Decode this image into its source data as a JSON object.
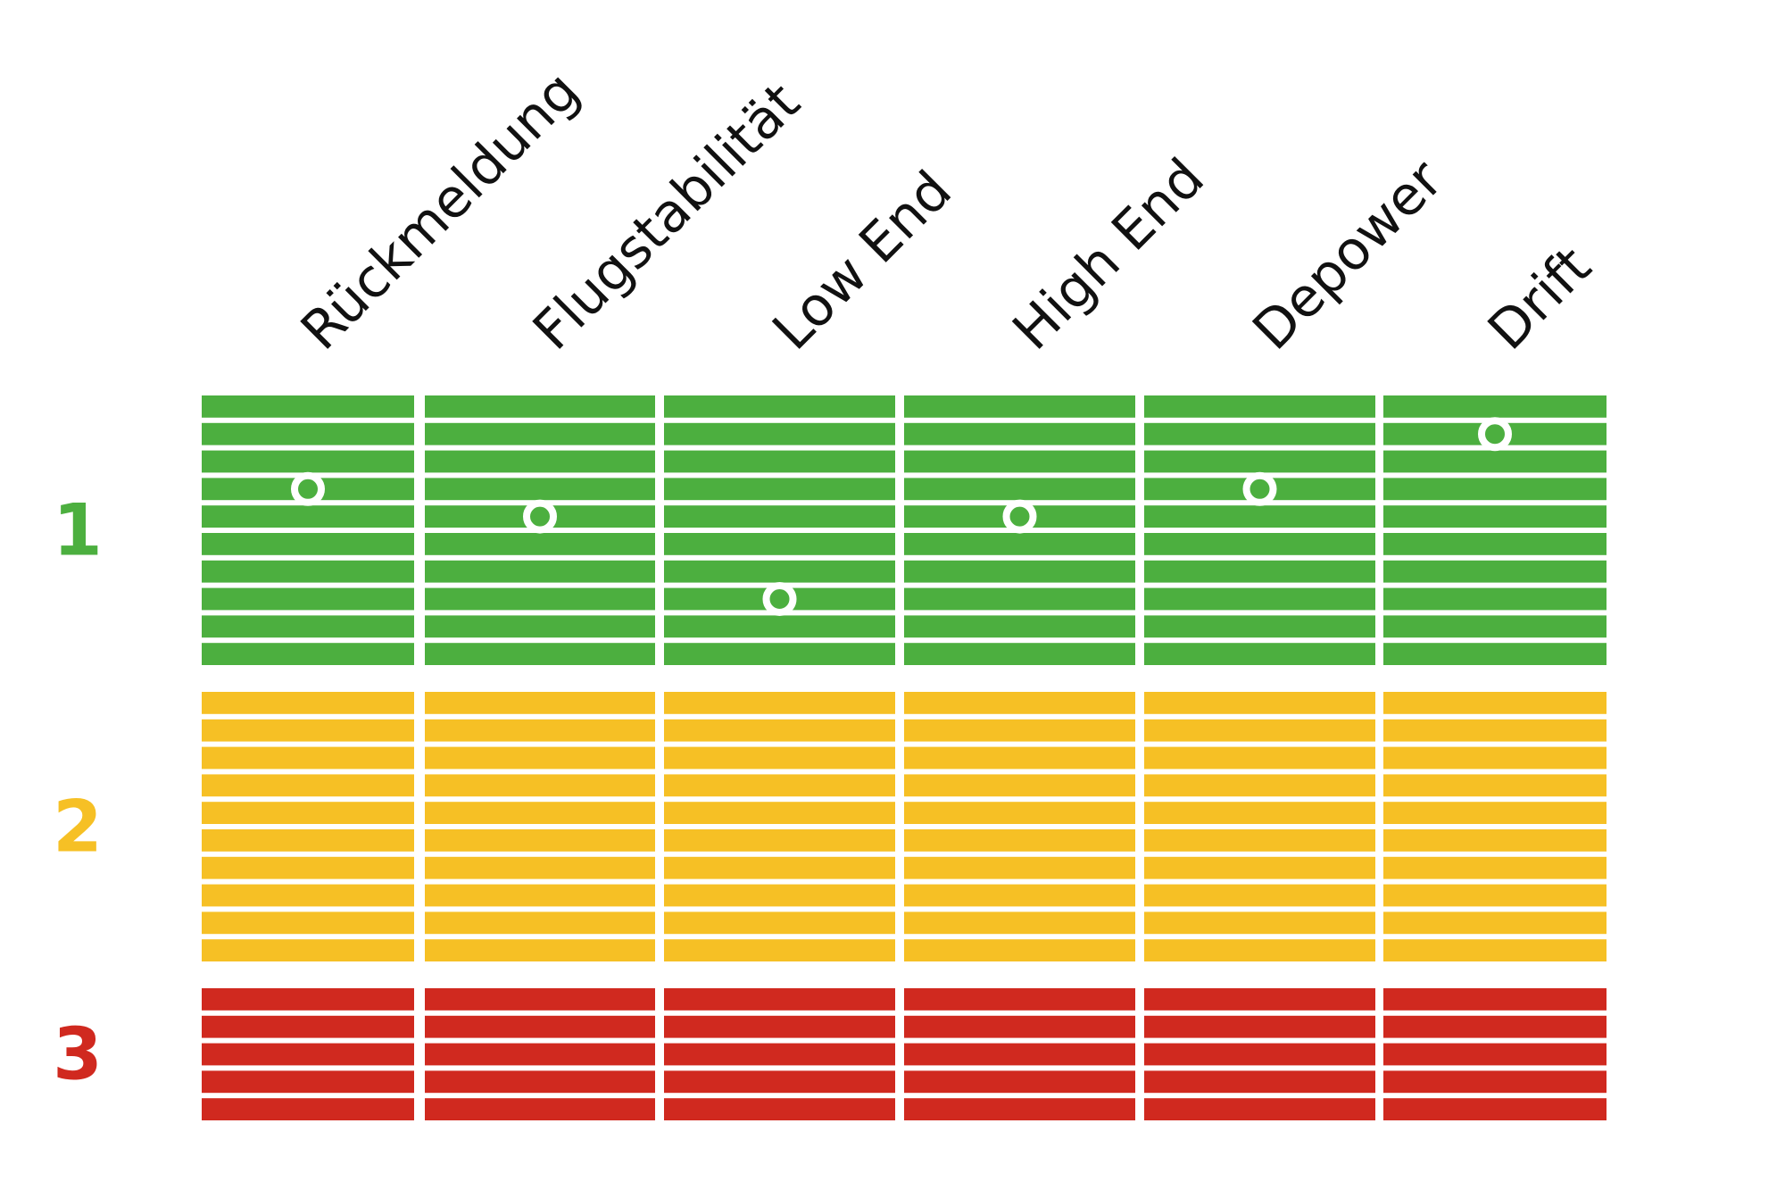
{
  "chart_data": {
    "type": "table",
    "columns": [
      "Rückmeldung",
      "Flugstabilität",
      "Low End",
      "High End",
      "Depower",
      "Drift"
    ],
    "bands": [
      {
        "label": "1",
        "color": "#4caf3f",
        "rows": 10
      },
      {
        "label": "2",
        "color": "#f6c025",
        "rows": 10
      },
      {
        "label": "3",
        "color": "#d0291f",
        "rows": 5
      }
    ],
    "markers": [
      {
        "column": "Rückmeldung",
        "band": "1",
        "row": 4
      },
      {
        "column": "Flugstabilität",
        "band": "1",
        "row": 5
      },
      {
        "column": "Low End",
        "band": "1",
        "row": 8
      },
      {
        "column": "High End",
        "band": "1",
        "row": 5
      },
      {
        "column": "Depower",
        "band": "1",
        "row": 4
      },
      {
        "column": "Drift",
        "band": "1",
        "row": 2
      }
    ],
    "marker_color": "#ffffff"
  }
}
